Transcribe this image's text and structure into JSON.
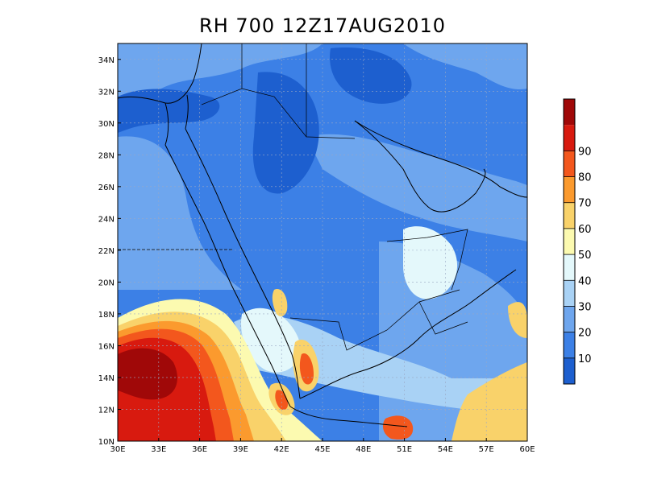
{
  "title": "RH 700 12Z17AUG2010",
  "map": {
    "lon_range": [
      30,
      60
    ],
    "lat_range": [
      10,
      35
    ],
    "lon_labels": [
      {
        "value": 30,
        "label": "30E"
      },
      {
        "value": 33,
        "label": "33E"
      },
      {
        "value": 36,
        "label": "36E"
      },
      {
        "value": 39,
        "label": "39E"
      },
      {
        "value": 42,
        "label": "42E"
      },
      {
        "value": 45,
        "label": "45E"
      },
      {
        "value": 48,
        "label": "48E"
      },
      {
        "value": 51,
        "label": "51E"
      },
      {
        "value": 54,
        "label": "54E"
      },
      {
        "value": 57,
        "label": "57E"
      },
      {
        "value": 60,
        "label": "60E"
      }
    ],
    "lat_labels": [
      {
        "value": 10,
        "label": "10N"
      },
      {
        "value": 12,
        "label": "12N"
      },
      {
        "value": 14,
        "label": "14N"
      },
      {
        "value": 16,
        "label": "16N"
      },
      {
        "value": 18,
        "label": "18N"
      },
      {
        "value": 20,
        "label": "20N"
      },
      {
        "value": 22,
        "label": "22N"
      },
      {
        "value": 24,
        "label": "24N"
      },
      {
        "value": 26,
        "label": "26N"
      },
      {
        "value": 28,
        "label": "28N"
      },
      {
        "value": 30,
        "label": "30N"
      },
      {
        "value": 32,
        "label": "32N"
      },
      {
        "value": 34,
        "label": "34N"
      }
    ],
    "gridlines": true
  },
  "colorbar": {
    "levels": [
      "10",
      "20",
      "30",
      "40",
      "50",
      "60",
      "70",
      "80",
      "90"
    ],
    "colors": [
      "#1d5fcf",
      "#3c80e6",
      "#6ea6ee",
      "#a9d2f5",
      "#e4f8fb",
      "#fcfab0",
      "#f9d26a",
      "#fb9a2e",
      "#f3571d",
      "#d81a0f",
      "#a00808"
    ]
  },
  "field_colors": {
    "c1": "#1d5fcf",
    "c2": "#3c80e6",
    "c3": "#6ea6ee",
    "c4": "#a9d2f5",
    "c5": "#e4f8fb",
    "c6": "#fcfab0",
    "c7": "#f9d26a",
    "c8": "#fb9a2e",
    "c9": "#f3571d",
    "c10": "#d81a0f",
    "c11": "#a00808"
  }
}
